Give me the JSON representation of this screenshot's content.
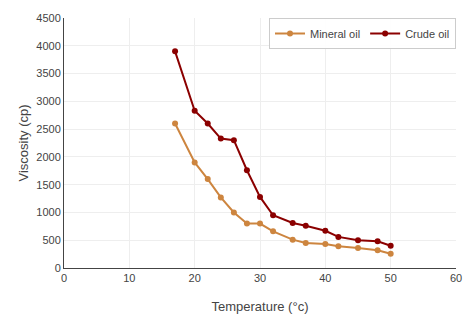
{
  "chart_data": {
    "type": "line",
    "x_label": "Temperature (°c)",
    "y_label": "Viscosity (cp)",
    "x": [
      17,
      20,
      22,
      24,
      26,
      28,
      30,
      32,
      35,
      37,
      40,
      42,
      45,
      48,
      50
    ],
    "series": [
      {
        "name": "Mineral oil",
        "color": "#CD853F",
        "marker": "circle",
        "values": [
          2600,
          1900,
          1600,
          1270,
          1000,
          800,
          800,
          660,
          510,
          450,
          430,
          390,
          360,
          320,
          255
        ]
      },
      {
        "name": "Crude oil",
        "color": "#8B0000",
        "marker": "circle",
        "values": [
          3900,
          2830,
          2600,
          2330,
          2300,
          1760,
          1280,
          950,
          810,
          760,
          670,
          560,
          500,
          480,
          400
        ]
      }
    ],
    "xlim": [
      0,
      60
    ],
    "ylim": [
      0,
      4500
    ],
    "xticks": [
      0,
      10,
      20,
      30,
      40,
      50,
      60
    ],
    "yticks": [
      0,
      500,
      1000,
      1500,
      2000,
      2500,
      3000,
      3500,
      4000,
      4500
    ],
    "grid": true,
    "legend": "upper right"
  }
}
